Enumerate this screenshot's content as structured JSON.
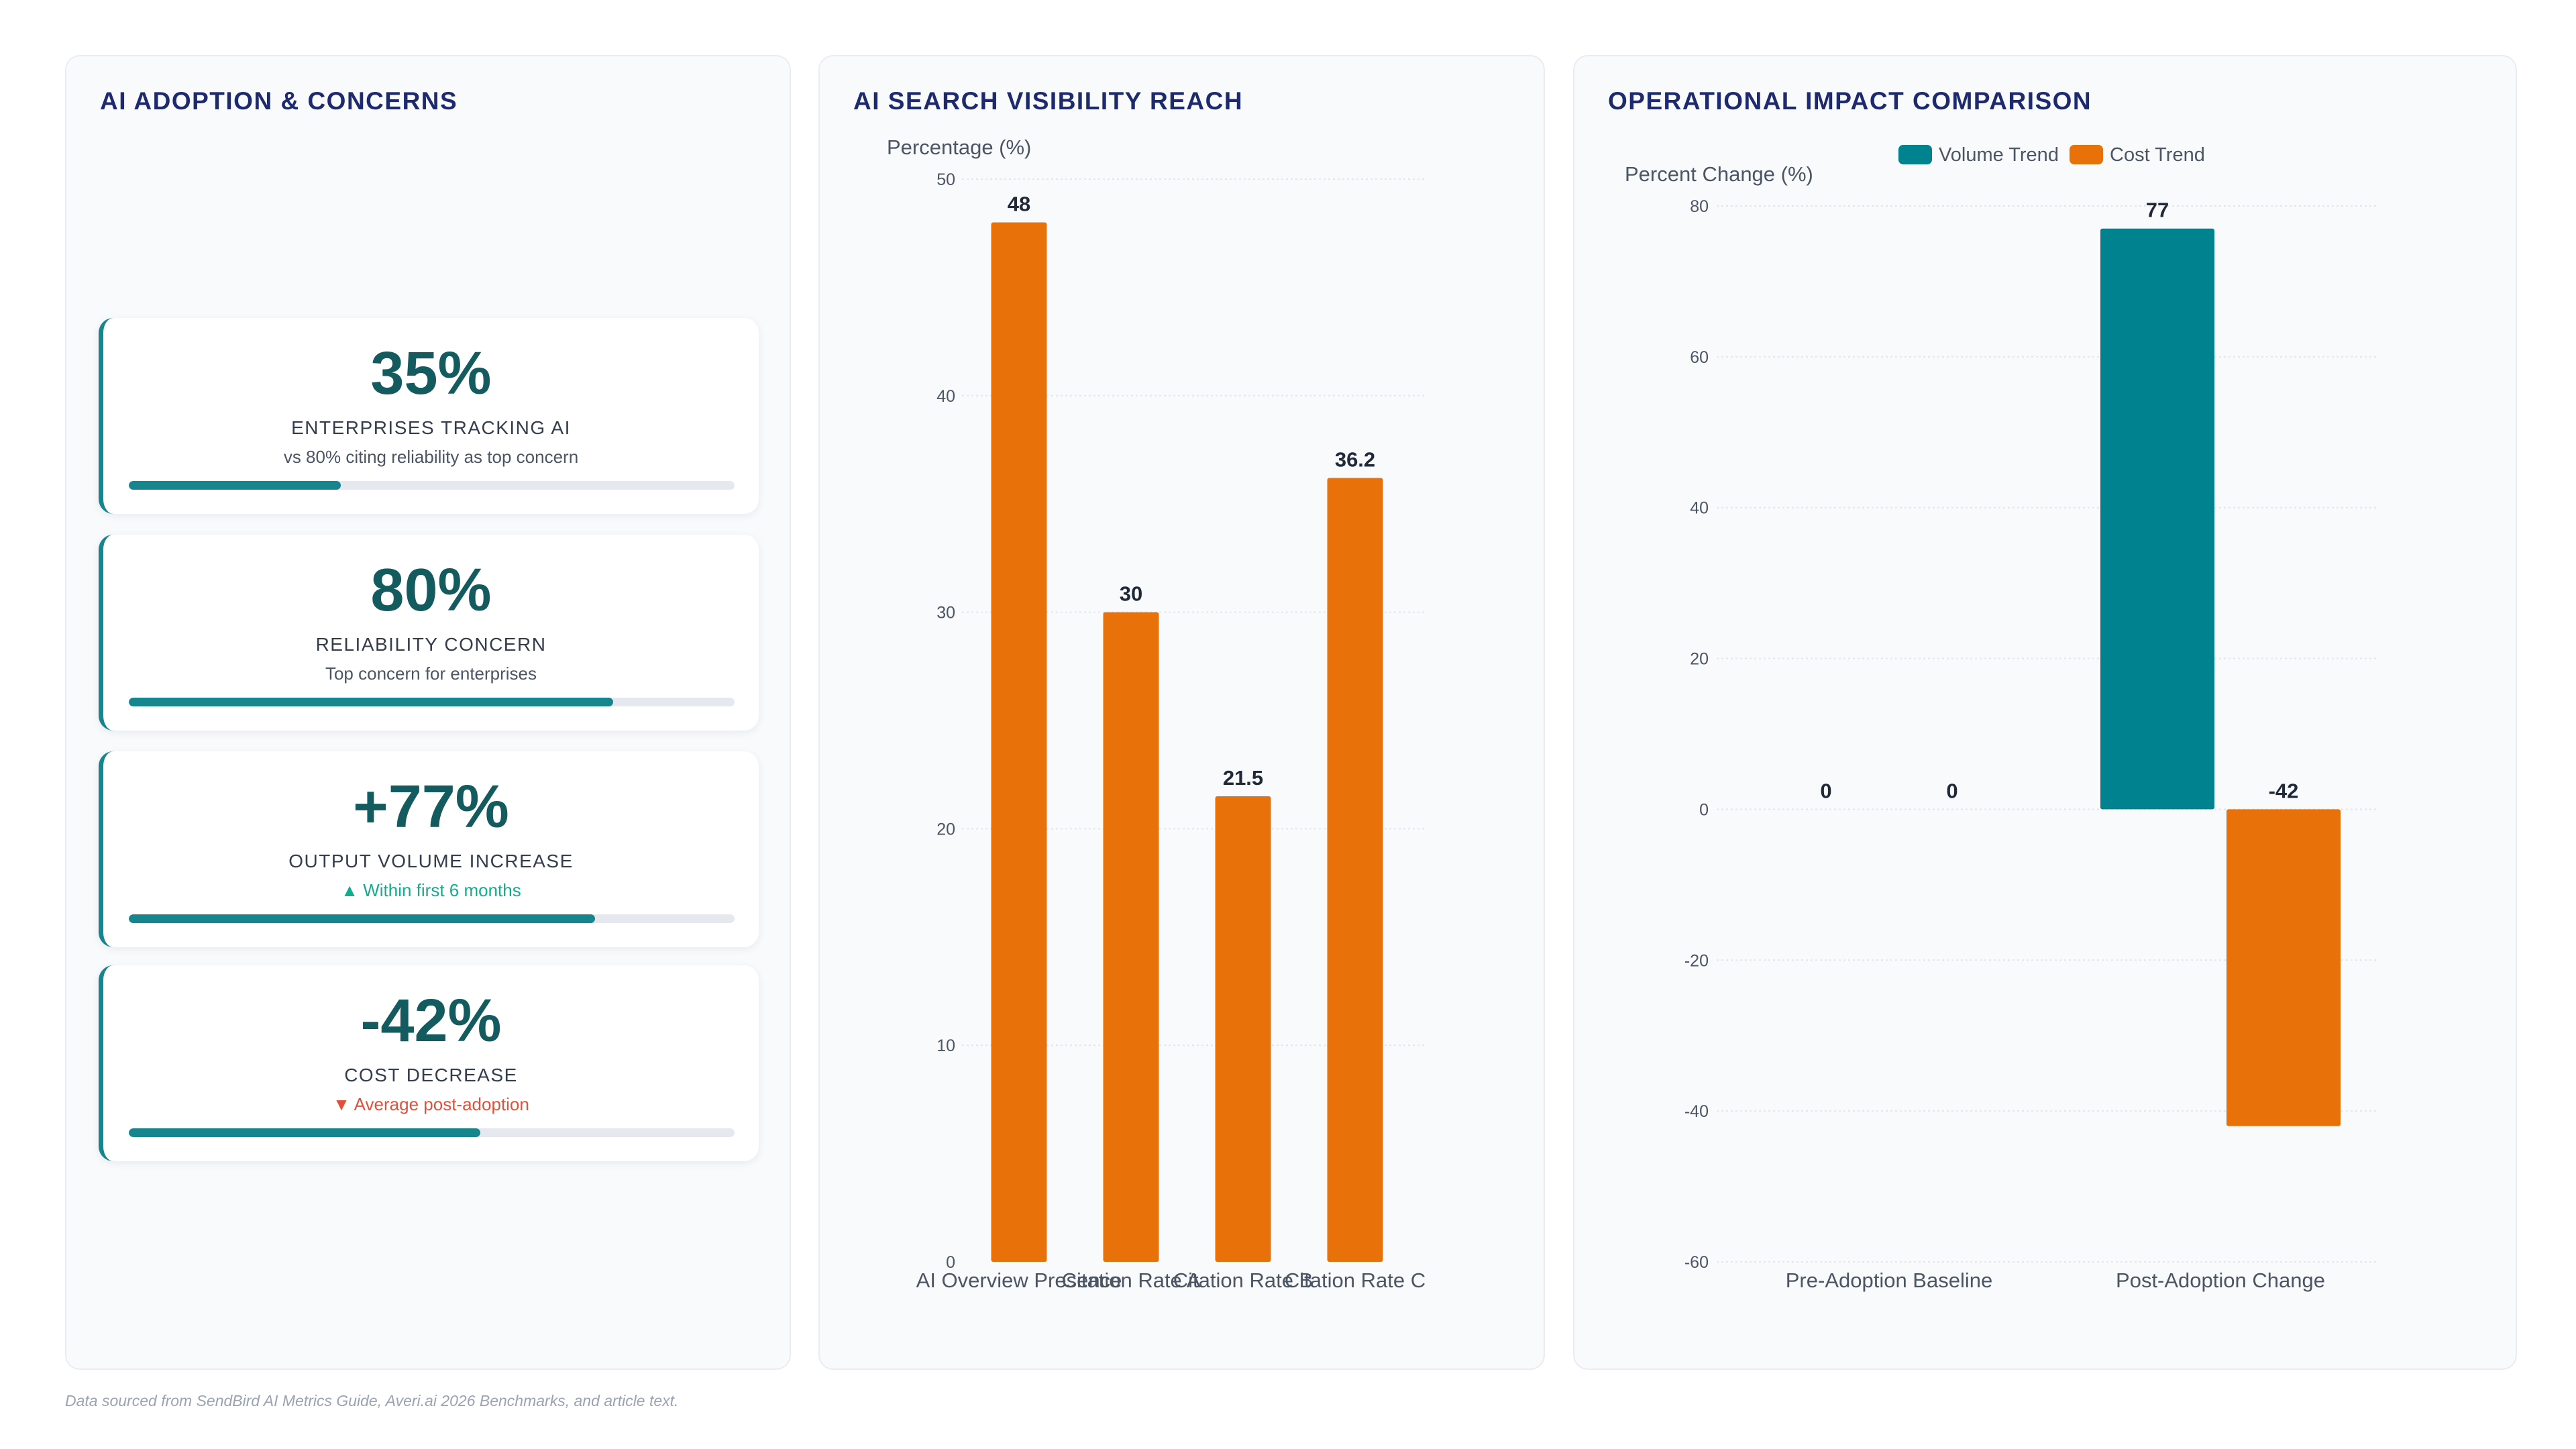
{
  "footnote": "Data sourced from SendBird AI Metrics Guide, Averi.ai 2026 Benchmarks, and article text.",
  "kpi_panel": {
    "title": "AI ADOPTION & CONCERNS",
    "cards": [
      {
        "value": "35%",
        "label": "ENTERPRISES TRACKING AI",
        "sub": "vs 80% citing reliability as top concern",
        "sub_style": "neutral",
        "progress": 0.35
      },
      {
        "value": "80%",
        "label": "RELIABILITY CONCERN",
        "sub": "Top concern for enterprises",
        "sub_style": "neutral",
        "progress": 0.8
      },
      {
        "value": "+77%",
        "label": "OUTPUT VOLUME INCREASE",
        "sub": "▲ Within first 6 months",
        "sub_style": "up",
        "progress": 0.77
      },
      {
        "value": "-42%",
        "label": "COST DECREASE",
        "sub": "▼ Average post-adoption",
        "sub_style": "down",
        "progress": 0.58
      }
    ]
  },
  "chart_data": [
    {
      "type": "bar",
      "title": "AI SEARCH VISIBILITY REACH",
      "ylabel": "Percentage (%)",
      "xlabel": "",
      "categories": [
        "AI Overview Presence",
        "Citation Rate A",
        "Citation Rate B",
        "Citation Rate C"
      ],
      "values": [
        48,
        30,
        21.5,
        36.2
      ],
      "data_labels": [
        "48",
        "30",
        "21.5",
        "36.2"
      ],
      "ylim": [
        0,
        50
      ],
      "yticks": [
        0,
        10,
        20,
        30,
        40,
        50
      ],
      "color": "#e8710a",
      "grid": true,
      "legend": "none"
    },
    {
      "type": "bar",
      "title": "OPERATIONAL IMPACT COMPARISON",
      "ylabel": "Percent Change (%)",
      "xlabel": "",
      "categories": [
        "Pre-Adoption Baseline",
        "Post-Adoption Change"
      ],
      "series": [
        {
          "name": "Volume Trend",
          "values": [
            0,
            77
          ],
          "data_labels": [
            "0",
            "77"
          ],
          "color": "#00838f"
        },
        {
          "name": "Cost Trend",
          "values": [
            0,
            -42
          ],
          "data_labels": [
            "0",
            "-42"
          ],
          "color": "#e8710a"
        }
      ],
      "ylim": [
        -60,
        80
      ],
      "yticks": [
        -60,
        -40,
        -20,
        0,
        20,
        40,
        60,
        80
      ],
      "grid": true,
      "legend": "top-center"
    }
  ]
}
